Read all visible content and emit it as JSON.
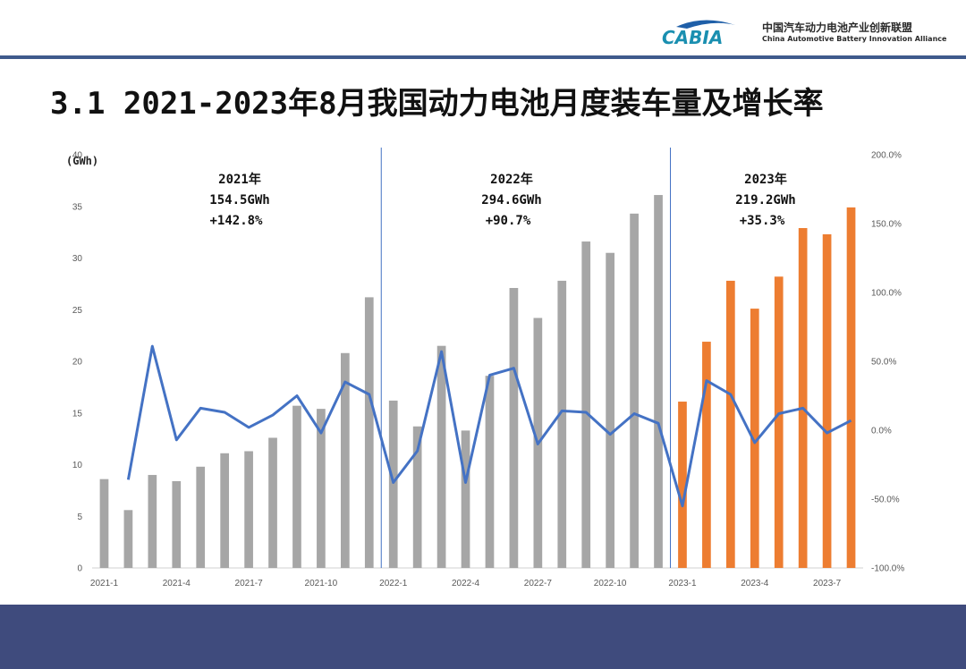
{
  "header": {
    "org_name_cn": "中国汽车动力电池产业创新联盟",
    "org_name_en": "China Automotive Battery Innovation Alliance",
    "logo_text": "CABIA",
    "accent_color": "#3f5a8c",
    "footer_color": "#3f4b7d"
  },
  "slide": {
    "title": "3.1 2021-2023年8月我国动力电池月度装车量及增长率"
  },
  "chart_data": {
    "type": "bar",
    "unit_label": "(GWh)",
    "categories": [
      "2021-1",
      "2021-2",
      "2021-3",
      "2021-4",
      "2021-5",
      "2021-6",
      "2021-7",
      "2021-8",
      "2021-9",
      "2021-10",
      "2021-11",
      "2021-12",
      "2022-1",
      "2022-2",
      "2022-3",
      "2022-4",
      "2022-5",
      "2022-6",
      "2022-7",
      "2022-8",
      "2022-9",
      "2022-10",
      "2022-11",
      "2022-12",
      "2023-1",
      "2023-2",
      "2023-3",
      "2023-4",
      "2023-5",
      "2023-6",
      "2023-7",
      "2023-8"
    ],
    "x_tick_labels": [
      "2021-1",
      "2021-4",
      "2021-7",
      "2021-10",
      "2022-1",
      "2022-4",
      "2022-7",
      "2022-10",
      "2023-1",
      "2023-4",
      "2023-7"
    ],
    "series": [
      {
        "name": "装车量",
        "axis": "left",
        "values": [
          8.6,
          5.6,
          9.0,
          8.4,
          9.8,
          11.1,
          11.3,
          12.6,
          15.7,
          15.4,
          20.8,
          26.2,
          16.2,
          13.7,
          21.5,
          13.3,
          18.6,
          27.1,
          24.2,
          27.8,
          31.6,
          30.5,
          34.3,
          36.1,
          16.1,
          21.9,
          27.8,
          25.1,
          28.2,
          32.9,
          32.3,
          34.9
        ],
        "colors": {
          "2021": "#a6a6a6",
          "2022": "#a6a6a6",
          "2023": "#ed7d31"
        }
      },
      {
        "name": "增长率",
        "axis": "right",
        "type": "line",
        "color": "#4472c4",
        "values": [
          null,
          -36,
          61,
          -7,
          16,
          13,
          2,
          11,
          25,
          -2,
          35,
          26,
          -38,
          -15,
          57,
          -38,
          40,
          45,
          -10,
          14,
          13,
          -3,
          12,
          5,
          -55,
          36,
          26,
          -9,
          12,
          16,
          -2,
          7
        ]
      }
    ],
    "left_axis": {
      "min": 0,
      "max": 40,
      "ticks": [
        "0",
        "5",
        "10",
        "15",
        "20",
        "25",
        "30",
        "35",
        "40"
      ]
    },
    "right_axis": {
      "min": -100,
      "max": 200,
      "ticks": [
        "-100.0%",
        "-50.0%",
        "0.0%",
        "50.0%",
        "100.0%",
        "150.0%",
        "200.0%"
      ]
    },
    "annotations": [
      {
        "year": "2021年",
        "total": "154.5GWh",
        "growth": "+142.8%"
      },
      {
        "year": "2022年",
        "total": "294.6GWh",
        "growth": "+90.7%"
      },
      {
        "year": "2023年",
        "total": "219.2GWh",
        "growth": "+35.3%"
      }
    ]
  }
}
